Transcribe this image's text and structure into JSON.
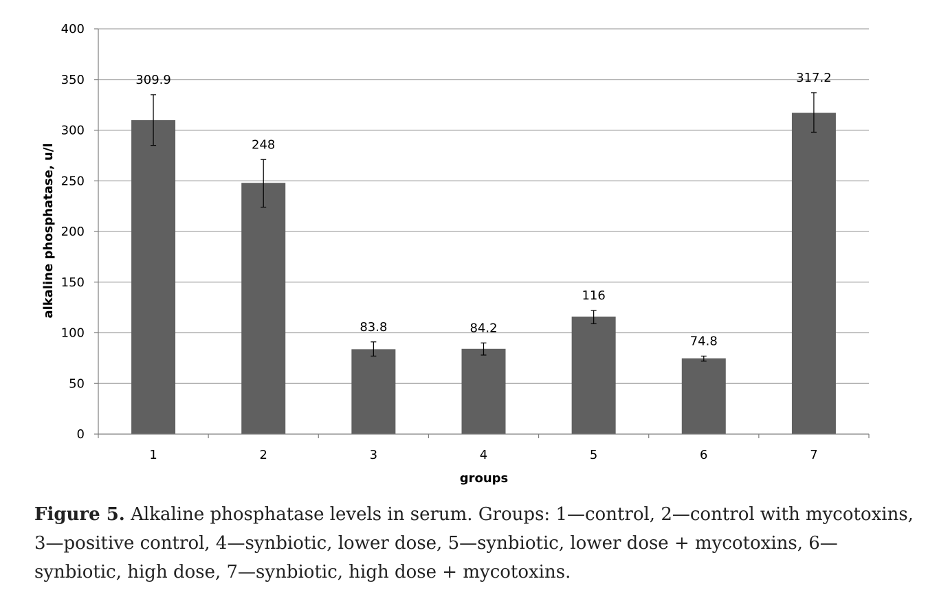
{
  "chart_data": {
    "type": "bar",
    "categories": [
      "1",
      "2",
      "3",
      "4",
      "5",
      "6",
      "7"
    ],
    "values": [
      309.9,
      248,
      83.8,
      84.2,
      116,
      74.8,
      317.2
    ],
    "value_labels": [
      "309.9",
      "248",
      "83.8",
      "84.2",
      "116",
      "74.8",
      "317.2"
    ],
    "error_low": [
      285,
      224,
      77,
      78,
      109,
      72,
      298
    ],
    "error_high": [
      335,
      271,
      91,
      90,
      122,
      77,
      337
    ],
    "xlabel": "groups",
    "ylabel": "alkaline phosphatase, u/l",
    "ylim": [
      0,
      400
    ],
    "yticks": [
      0,
      50,
      100,
      150,
      200,
      250,
      300,
      350,
      400
    ],
    "grid": true,
    "bar_color": "#606060",
    "grid_color": "#a6a6a6"
  },
  "caption": {
    "label": "Figure 5.",
    "text": "Alkaline phosphatase levels in serum. Groups: 1—control, 2—control with mycotoxins, 3—positive control, 4—synbiotic, lower dose, 5—synbiotic, lower dose + mycotoxins, 6—synbiotic, high dose, 7—synbiotic, high dose + mycotoxins."
  }
}
